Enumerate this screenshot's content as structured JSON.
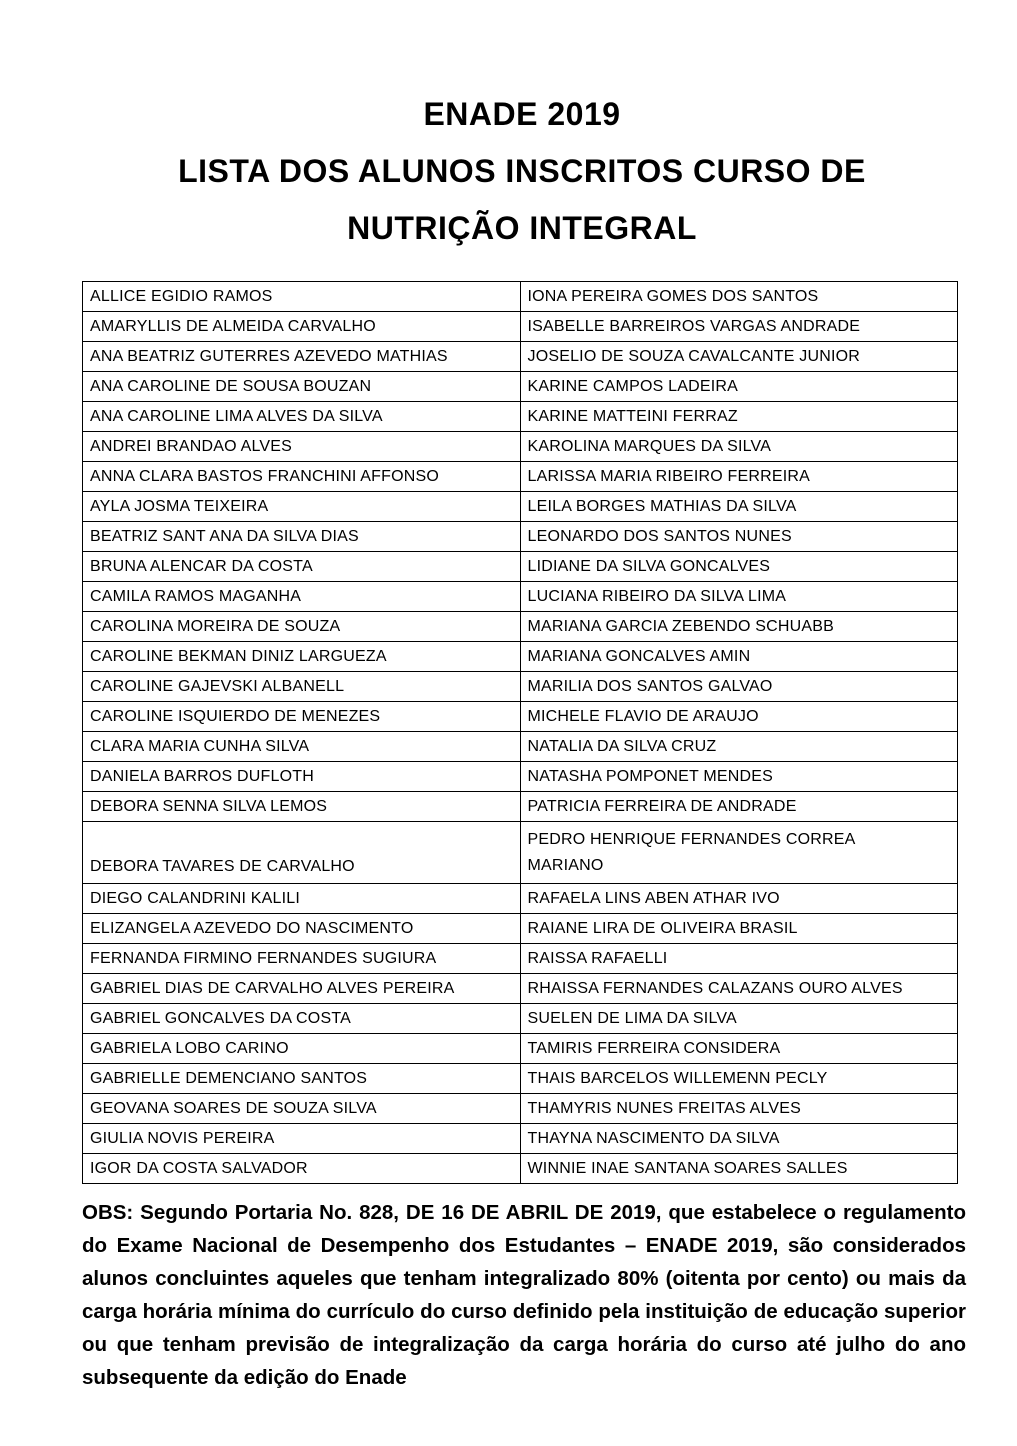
{
  "colors": {
    "background": "#ffffff",
    "text": "#000000",
    "table_border": "#000000"
  },
  "title": {
    "lines": [
      "ENADE 2019",
      "LISTA DOS ALUNOS INSCRITOS CURSO DE",
      "NUTRIÇÃO INTEGRAL"
    ]
  },
  "table": {
    "rows": [
      {
        "left": "ALLICE EGIDIO RAMOS",
        "right": "IONA PEREIRA GOMES DOS SANTOS"
      },
      {
        "left": "AMARYLLIS DE ALMEIDA CARVALHO",
        "right": "ISABELLE BARREIROS VARGAS ANDRADE"
      },
      {
        "left": "ANA BEATRIZ GUTERRES AZEVEDO MATHIAS",
        "right": "JOSELIO DE SOUZA CAVALCANTE JUNIOR"
      },
      {
        "left": "ANA CAROLINE DE SOUSA BOUZAN",
        "right": "KARINE CAMPOS LADEIRA"
      },
      {
        "left": "ANA CAROLINE LIMA ALVES DA SILVA",
        "right": "KARINE MATTEINI FERRAZ"
      },
      {
        "left": "ANDREI BRANDAO ALVES",
        "right": "KAROLINA MARQUES DA SILVA"
      },
      {
        "left": "ANNA CLARA BASTOS FRANCHINI AFFONSO",
        "right": "LARISSA MARIA RIBEIRO FERREIRA"
      },
      {
        "left": "AYLA JOSMA TEIXEIRA",
        "right": "LEILA BORGES MATHIAS DA SILVA"
      },
      {
        "left": "BEATRIZ SANT ANA DA SILVA DIAS",
        "right": "LEONARDO DOS SANTOS NUNES"
      },
      {
        "left": "BRUNA ALENCAR DA COSTA",
        "right": "LIDIANE DA SILVA GONCALVES"
      },
      {
        "left": "CAMILA RAMOS MAGANHA",
        "right": "LUCIANA RIBEIRO DA SILVA LIMA"
      },
      {
        "left": "CAROLINA MOREIRA DE SOUZA",
        "right": "MARIANA GARCIA ZEBENDO SCHUABB"
      },
      {
        "left": "CAROLINE BEKMAN DINIZ LARGUEZA",
        "right": "MARIANA GONCALVES AMIN"
      },
      {
        "left": "CAROLINE GAJEVSKI ALBANELL",
        "right": "MARILIA DOS SANTOS GALVAO"
      },
      {
        "left": "CAROLINE ISQUIERDO DE MENEZES",
        "right": "MICHELE FLAVIO DE ARAUJO"
      },
      {
        "left": "CLARA MARIA CUNHA SILVA",
        "right": "NATALIA DA SILVA CRUZ"
      },
      {
        "left": "DANIELA BARROS DUFLOTH",
        "right": "NATASHA POMPONET MENDES"
      },
      {
        "left": "DEBORA SENNA SILVA LEMOS",
        "right": "PATRICIA FERREIRA DE ANDRADE"
      },
      {
        "left": "DEBORA TAVARES DE CARVALHO",
        "right": "PEDRO HENRIQUE FERNANDES CORREA\nMARIANO",
        "tall": true
      },
      {
        "left": "DIEGO CALANDRINI KALILI",
        "right": "RAFAELA LINS ABEN ATHAR IVO"
      },
      {
        "left": "ELIZANGELA AZEVEDO DO NASCIMENTO",
        "right": "RAIANE LIRA DE OLIVEIRA BRASIL"
      },
      {
        "left": "FERNANDA FIRMINO FERNANDES SUGIURA",
        "right": "RAISSA RAFAELLI"
      },
      {
        "left": "GABRIEL DIAS DE CARVALHO ALVES PEREIRA",
        "right": "RHAISSA FERNANDES CALAZANS OURO ALVES"
      },
      {
        "left": "GABRIEL GONCALVES DA COSTA",
        "right": "SUELEN DE LIMA DA SILVA"
      },
      {
        "left": "GABRIELA LOBO CARINO",
        "right": "TAMIRIS FERREIRA CONSIDERA"
      },
      {
        "left": "GABRIELLE DEMENCIANO SANTOS",
        "right": "THAIS BARCELOS WILLEMENN PECLY"
      },
      {
        "left": "GEOVANA SOARES DE SOUZA SILVA",
        "right": "THAMYRIS NUNES FREITAS ALVES"
      },
      {
        "left": "GIULIA NOVIS PEREIRA",
        "right": "THAYNA NASCIMENTO DA SILVA"
      },
      {
        "left": "IGOR DA COSTA SALVADOR",
        "right": "WINNIE INAE SANTANA SOARES SALLES"
      }
    ]
  },
  "note": {
    "text": "OBS: Segundo Portaria No. 828, DE 16 DE ABRIL DE 2019, que estabelece o regulamento do Exame Nacional de Desempenho dos Estudantes – ENADE 2019, são considerados alunos concluintes aqueles que tenham integralizado 80% (oitenta por cento) ou mais da carga horária mínima do currículo do curso definido pela instituição de educação superior ou que tenham previsão de integralização da carga horária do curso até julho do ano subsequente da edição do Enade"
  }
}
